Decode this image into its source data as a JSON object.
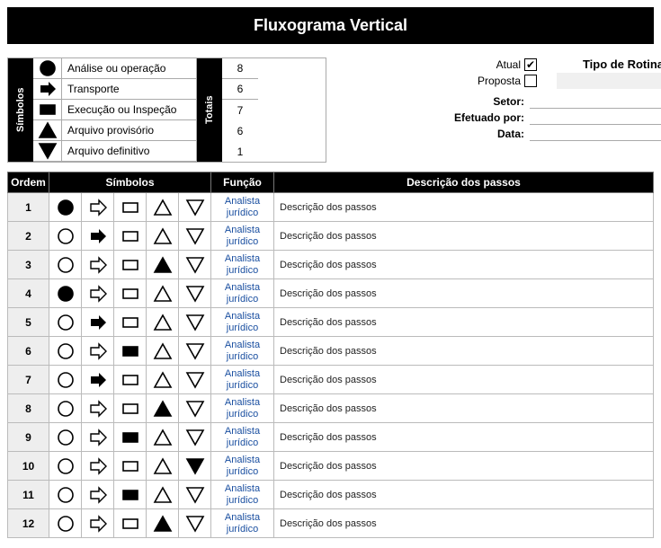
{
  "title": "Fluxograma Vertical",
  "legend": {
    "simbolosLabel": "Símbolos",
    "totaisLabel": "Totais",
    "items": [
      {
        "icon": "circle-filled",
        "label": "Análise ou operação",
        "count": 8
      },
      {
        "icon": "arrow-right-filled",
        "label": "Transporte",
        "count": 6
      },
      {
        "icon": "square-filled",
        "label": "Execução ou Inspeção",
        "count": 7
      },
      {
        "icon": "triangle-up-filled",
        "label": "Arquivo provisório",
        "count": 6
      },
      {
        "icon": "triangle-down-filled",
        "label": "Arquivo definitivo",
        "count": 1
      }
    ]
  },
  "info": {
    "atualLabel": "Atual",
    "atualChecked": true,
    "propostaLabel": "Proposta",
    "propostaChecked": false,
    "tipoRotinaLabel": "Tipo de Rotina",
    "tipoRotinaValue": "",
    "setorLabel": "Setor:",
    "setorValue": "",
    "efetuadoLabel": "Efetuado por:",
    "efetuadoValue": "",
    "dataLabel": "Data:",
    "dataValue": ""
  },
  "tableHeaders": {
    "ordem": "Ordem",
    "simbolos": "Símbolos",
    "funcao": "Função",
    "descricao": "Descrição dos passos"
  },
  "symbolsOrder": [
    "circle",
    "arrow",
    "square",
    "triup",
    "tridown"
  ],
  "rows": [
    {
      "ordem": 1,
      "active": "circle",
      "funcao": "Analista jurídico",
      "desc": "Descrição dos passos"
    },
    {
      "ordem": 2,
      "active": "arrow",
      "funcao": "Analista jurídico",
      "desc": "Descrição dos passos"
    },
    {
      "ordem": 3,
      "active": "triup",
      "funcao": "Analista jurídico",
      "desc": "Descrição dos passos"
    },
    {
      "ordem": 4,
      "active": "circle",
      "funcao": "Analista jurídico",
      "desc": "Descrição dos passos"
    },
    {
      "ordem": 5,
      "active": "arrow",
      "funcao": "Analista jurídico",
      "desc": "Descrição dos passos"
    },
    {
      "ordem": 6,
      "active": "square",
      "funcao": "Analista jurídico",
      "desc": "Descrição dos passos"
    },
    {
      "ordem": 7,
      "active": "arrow",
      "funcao": "Analista jurídico",
      "desc": "Descrição dos passos"
    },
    {
      "ordem": 8,
      "active": "triup",
      "funcao": "Analista jurídico",
      "desc": "Descrição dos passos"
    },
    {
      "ordem": 9,
      "active": "square",
      "funcao": "Analista jurídico",
      "desc": "Descrição dos passos"
    },
    {
      "ordem": 10,
      "active": "tridown",
      "funcao": "Analista jurídico",
      "desc": "Descrição dos passos"
    },
    {
      "ordem": 11,
      "active": "square",
      "funcao": "Analista jurídico",
      "desc": "Descrição dos passos"
    },
    {
      "ordem": 12,
      "active": "triup",
      "funcao": "Analista jurídico",
      "desc": "Descrição dos passos"
    }
  ],
  "colors": {
    "black": "#000000",
    "white": "#ffffff",
    "link": "#1a4fa0",
    "grey": "#eeeeee",
    "border": "#bbbbbb"
  }
}
